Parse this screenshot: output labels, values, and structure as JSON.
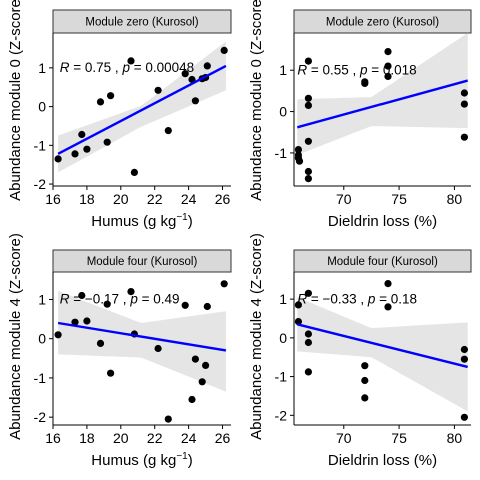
{
  "chart_data": [
    {
      "type": "scatter",
      "strip": "Module zero (Kurosol)",
      "xlabel": "Humus (g  kg",
      "xlabel_sup": "−1",
      "xlabel_end": ")",
      "ylabel": "Abundance module 0 (Z-score)",
      "xlim": [
        16,
        26.5
      ],
      "ylim": [
        -2.05,
        1.9
      ],
      "xticks": [
        16,
        18,
        20,
        22,
        24,
        26
      ],
      "yticks": [
        -2,
        -1,
        0,
        1
      ],
      "x_tick_labels": [
        "16",
        "18",
        "20",
        "22",
        "24",
        "26"
      ],
      "y_tick_labels": [
        "-2",
        "-1",
        "0",
        "1"
      ],
      "annotation": {
        "r_label": "R",
        "r_value": " = 0.75 , ",
        "p_label": "p",
        "p_value": " = 0.00048",
        "x": 16.4,
        "y": 1.02
      },
      "fit": {
        "x": [
          16.3,
          26.2
        ],
        "y": [
          -1.22,
          1.05
        ]
      },
      "band": {
        "upper": [
          [
            16.3,
            -0.75
          ],
          [
            21.2,
            0.02
          ],
          [
            26.2,
            1.68
          ]
        ],
        "lower": [
          [
            16.3,
            -1.7
          ],
          [
            21.2,
            -0.52
          ],
          [
            26.2,
            0.42
          ]
        ]
      },
      "points": [
        {
          "x": 16.3,
          "y": -1.35
        },
        {
          "x": 17.3,
          "y": -1.22
        },
        {
          "x": 17.7,
          "y": -0.72
        },
        {
          "x": 18.0,
          "y": -1.1
        },
        {
          "x": 18.8,
          "y": 0.12
        },
        {
          "x": 19.2,
          "y": -0.92
        },
        {
          "x": 19.4,
          "y": 0.28
        },
        {
          "x": 20.6,
          "y": 1.18
        },
        {
          "x": 20.8,
          "y": -1.7
        },
        {
          "x": 22.2,
          "y": 0.42
        },
        {
          "x": 22.8,
          "y": -0.62
        },
        {
          "x": 23.8,
          "y": 0.85
        },
        {
          "x": 24.2,
          "y": 0.7
        },
        {
          "x": 24.4,
          "y": 0.15
        },
        {
          "x": 24.8,
          "y": 0.72
        },
        {
          "x": 25.0,
          "y": 0.75
        },
        {
          "x": 25.1,
          "y": 1.05
        },
        {
          "x": 26.1,
          "y": 1.45
        }
      ]
    },
    {
      "type": "scatter",
      "strip": "Module zero (Kurosol)",
      "xlabel": "Dieldrin loss (%)",
      "ylabel": "Abundance module 0 (Z-score)",
      "xlim": [
        65.5,
        81.5
      ],
      "ylim": [
        -1.8,
        1.9
      ],
      "xticks": [
        70,
        75,
        80
      ],
      "yticks": [
        -1,
        0,
        1
      ],
      "x_tick_labels": [
        "70",
        "75",
        "80"
      ],
      "y_tick_labels": [
        "-1",
        "0",
        "1"
      ],
      "annotation": {
        "r_label": "R",
        "r_value": " = 0.55 , ",
        "p_label": "p",
        "p_value": " = 0.018",
        "x": 65.8,
        "y": 1.02
      },
      "fit": {
        "x": [
          65.8,
          81.2
        ],
        "y": [
          -0.38,
          0.75
        ]
      },
      "band": {
        "upper": [
          [
            65.8,
            0.3
          ],
          [
            72.5,
            0.35
          ],
          [
            81.2,
            1.9
          ]
        ],
        "lower": [
          [
            65.8,
            -1.05
          ],
          [
            72.5,
            -0.35
          ],
          [
            81.2,
            -0.4
          ]
        ]
      },
      "points": [
        {
          "x": 65.9,
          "y": -0.92
        },
        {
          "x": 65.9,
          "y": -1.05
        },
        {
          "x": 65.9,
          "y": -1.12
        },
        {
          "x": 66.0,
          "y": -1.2
        },
        {
          "x": 66.8,
          "y": 1.22
        },
        {
          "x": 66.8,
          "y": 0.32
        },
        {
          "x": 66.8,
          "y": 0.15
        },
        {
          "x": 66.8,
          "y": -0.72
        },
        {
          "x": 66.8,
          "y": -1.62
        },
        {
          "x": 66.8,
          "y": -1.45
        },
        {
          "x": 71.9,
          "y": 0.72
        },
        {
          "x": 71.9,
          "y": 0.68
        },
        {
          "x": 74.0,
          "y": 1.45
        },
        {
          "x": 74.0,
          "y": 1.1
        },
        {
          "x": 74.0,
          "y": 0.85
        },
        {
          "x": 80.9,
          "y": 0.45
        },
        {
          "x": 80.9,
          "y": 0.18
        },
        {
          "x": 80.9,
          "y": -0.62
        }
      ]
    },
    {
      "type": "scatter",
      "strip": "Module four (Kurosol)",
      "xlabel": "Humus (g  kg",
      "xlabel_sup": "−1",
      "xlabel_end": ")",
      "ylabel": "Abundance module 4 (Z-score)",
      "xlim": [
        16,
        26.5
      ],
      "ylim": [
        -2.2,
        1.7
      ],
      "xticks": [
        16,
        18,
        20,
        22,
        24,
        26
      ],
      "yticks": [
        -2,
        -1,
        0,
        1
      ],
      "x_tick_labels": [
        "16",
        "18",
        "20",
        "22",
        "24",
        "26"
      ],
      "y_tick_labels": [
        "-2",
        "-1",
        "0",
        "1"
      ],
      "annotation": {
        "r_label": "R",
        "r_value": " = −0.17 , ",
        "p_label": "p",
        "p_value": " = 0.49",
        "x": 16.4,
        "y": 1.02
      },
      "fit": {
        "x": [
          16.3,
          26.2
        ],
        "y": [
          0.4,
          -0.3
        ]
      },
      "band": {
        "upper": [
          [
            16.3,
            1.22
          ],
          [
            21.2,
            0.4
          ],
          [
            26.2,
            0.7
          ]
        ],
        "lower": [
          [
            16.3,
            -0.4
          ],
          [
            21.2,
            -0.48
          ],
          [
            26.2,
            -1.35
          ]
        ]
      },
      "points": [
        {
          "x": 16.3,
          "y": 0.1
        },
        {
          "x": 17.3,
          "y": 0.42
        },
        {
          "x": 17.7,
          "y": 1.1
        },
        {
          "x": 18.0,
          "y": 0.45
        },
        {
          "x": 18.8,
          "y": -0.12
        },
        {
          "x": 19.2,
          "y": 0.88
        },
        {
          "x": 19.4,
          "y": -0.88
        },
        {
          "x": 20.6,
          "y": 1.2
        },
        {
          "x": 20.8,
          "y": 0.12
        },
        {
          "x": 22.2,
          "y": -0.25
        },
        {
          "x": 22.8,
          "y": -2.05
        },
        {
          "x": 23.8,
          "y": 0.85
        },
        {
          "x": 24.2,
          "y": -1.55
        },
        {
          "x": 24.4,
          "y": -0.52
        },
        {
          "x": 24.8,
          "y": -1.1
        },
        {
          "x": 25.0,
          "y": -0.68
        },
        {
          "x": 25.1,
          "y": 0.82
        },
        {
          "x": 26.1,
          "y": 1.4
        }
      ]
    },
    {
      "type": "scatter",
      "strip": "Module four (Kurosol)",
      "xlabel": "Dieldrin loss (%)",
      "ylabel": "Abundance module 4 (Z-score)",
      "xlim": [
        65.5,
        81.5
      ],
      "ylim": [
        -2.25,
        1.7
      ],
      "xticks": [
        70,
        75,
        80
      ],
      "yticks": [
        -2,
        -1,
        0,
        1
      ],
      "x_tick_labels": [
        "70",
        "75",
        "80"
      ],
      "y_tick_labels": [
        "-2",
        "-1",
        "0",
        "1"
      ],
      "annotation": {
        "r_label": "R",
        "r_value": " = −0.33 , ",
        "p_label": "p",
        "p_value": " = 0.18",
        "x": 65.8,
        "y": 1.02
      },
      "fit": {
        "x": [
          65.8,
          81.2
        ],
        "y": [
          0.35,
          -0.75
        ]
      },
      "band": {
        "upper": [
          [
            65.8,
            1.05
          ],
          [
            72.5,
            0.25
          ],
          [
            81.2,
            0.4
          ]
        ],
        "lower": [
          [
            65.8,
            -0.35
          ],
          [
            72.5,
            -0.5
          ],
          [
            81.2,
            -1.9
          ]
        ]
      },
      "points": [
        {
          "x": 65.9,
          "y": 0.85
        },
        {
          "x": 65.9,
          "y": 0.42
        },
        {
          "x": 66.8,
          "y": 1.15
        },
        {
          "x": 66.8,
          "y": 0.1
        },
        {
          "x": 66.8,
          "y": -0.12
        },
        {
          "x": 66.8,
          "y": -0.88
        },
        {
          "x": 71.9,
          "y": -0.72
        },
        {
          "x": 71.9,
          "y": -1.1
        },
        {
          "x": 71.9,
          "y": -1.55
        },
        {
          "x": 74.0,
          "y": 1.4
        },
        {
          "x": 74.0,
          "y": 0.8
        },
        {
          "x": 80.9,
          "y": -0.3
        },
        {
          "x": 80.9,
          "y": -0.55
        },
        {
          "x": 80.9,
          "y": -2.05
        }
      ]
    }
  ]
}
